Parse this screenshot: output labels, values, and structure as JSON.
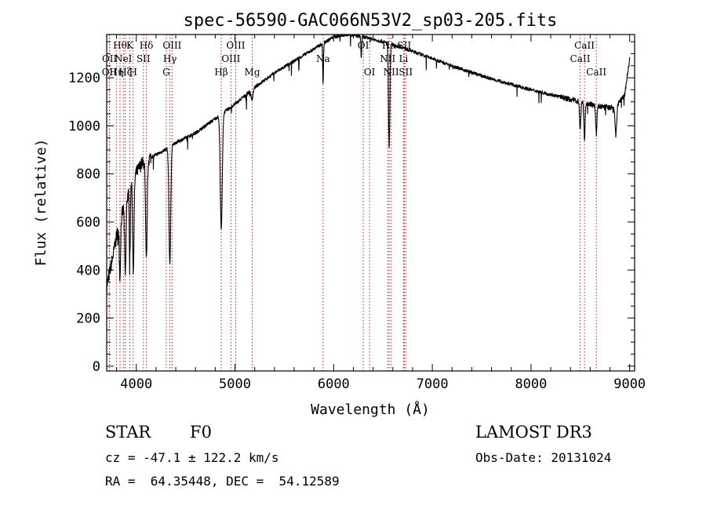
{
  "chart_data": {
    "type": "line",
    "title": "spec-56590-GAC066N53V2_sp03-205.fits",
    "xlabel": "Wavelength (Å)",
    "ylabel": "Flux (relative)",
    "xlim": [
      3700,
      9050
    ],
    "ylim": [
      -20,
      1380
    ],
    "xticks": [
      4000,
      5000,
      6000,
      7000,
      8000,
      9000
    ],
    "yticks": [
      0,
      200,
      400,
      600,
      800,
      1000,
      1200
    ],
    "grid": false,
    "line_color": "#000000",
    "marker_color": "#b22222",
    "continuum": {
      "x": [
        3700,
        3760,
        3800,
        3860,
        3920,
        3980,
        4050,
        4150,
        4250,
        4400,
        4600,
        4800,
        5000,
        5200,
        5400,
        5600,
        5800,
        6000,
        6150,
        6300,
        6500,
        6700,
        7000,
        7300,
        7600,
        8000,
        8300,
        8500,
        8700,
        8850,
        8950,
        9000
      ],
      "y": [
        330,
        450,
        540,
        640,
        720,
        790,
        840,
        870,
        890,
        930,
        970,
        1030,
        1090,
        1160,
        1220,
        1270,
        1320,
        1370,
        1380,
        1370,
        1350,
        1325,
        1280,
        1235,
        1195,
        1150,
        1120,
        1100,
        1080,
        1075,
        1130,
        1280
      ]
    },
    "absorption_lines": [
      {
        "center": 3835,
        "depth": 230,
        "width": 6
      },
      {
        "center": 3889,
        "depth": 300,
        "width": 7
      },
      {
        "center": 3934,
        "depth": 300,
        "width": 5
      },
      {
        "center": 3970,
        "depth": 380,
        "width": 7
      },
      {
        "center": 4102,
        "depth": 420,
        "width": 8
      },
      {
        "center": 4340,
        "depth": 490,
        "width": 9
      },
      {
        "center": 4861,
        "depth": 480,
        "width": 10
      },
      {
        "center": 5173,
        "depth": 40,
        "width": 10
      },
      {
        "center": 5893,
        "depth": 170,
        "width": 4
      },
      {
        "center": 6280,
        "depth": 90,
        "width": 4
      },
      {
        "center": 6563,
        "depth": 430,
        "width": 7
      },
      {
        "center": 8498,
        "depth": 120,
        "width": 6
      },
      {
        "center": 8542,
        "depth": 150,
        "width": 6
      },
      {
        "center": 8662,
        "depth": 120,
        "width": 6
      },
      {
        "center": 8860,
        "depth": 120,
        "width": 8
      }
    ],
    "line_markers": [
      {
        "wavelength": 3727,
        "label": "OII",
        "row": 2
      },
      {
        "wavelength": 3729,
        "label": "OII",
        "row": 1
      },
      {
        "wavelength": 3798,
        "label": "Hη",
        "row": 2
      },
      {
        "wavelength": 3835,
        "label": "Hθ",
        "row": 0
      },
      {
        "wavelength": 3869,
        "label": "NeI",
        "row": 1
      },
      {
        "wavelength": 3889,
        "label": "Hζ",
        "row": 2
      },
      {
        "wavelength": 3934,
        "label": "K",
        "row": 0
      },
      {
        "wavelength": 3968,
        "label": "H",
        "row": 2
      },
      {
        "wavelength": 4072,
        "label": "SII",
        "row": 1
      },
      {
        "wavelength": 4102,
        "label": "Hδ",
        "row": 0
      },
      {
        "wavelength": 4304,
        "label": "G",
        "row": 2
      },
      {
        "wavelength": 4341,
        "label": "Hγ",
        "row": 1
      },
      {
        "wavelength": 4363,
        "label": "OIII",
        "row": 0
      },
      {
        "wavelength": 4861,
        "label": "Hβ",
        "row": 2
      },
      {
        "wavelength": 4959,
        "label": "OIII",
        "row": 1
      },
      {
        "wavelength": 5007,
        "label": "OIII",
        "row": 0
      },
      {
        "wavelength": 5175,
        "label": "Mg",
        "row": 2
      },
      {
        "wavelength": 5893,
        "label": "Na",
        "row": 1
      },
      {
        "wavelength": 6300,
        "label": "OI",
        "row": 0
      },
      {
        "wavelength": 6364,
        "label": "OI",
        "row": 2
      },
      {
        "wavelength": 6548,
        "label": "NII",
        "row": 1
      },
      {
        "wavelength": 6563,
        "label": "Hα",
        "row": 0
      },
      {
        "wavelength": 6583,
        "label": "NII",
        "row": 2
      },
      {
        "wavelength": 6708,
        "label": "Li",
        "row": 1
      },
      {
        "wavelength": 6716,
        "label": "SII",
        "row": 0
      },
      {
        "wavelength": 6731,
        "label": "SII",
        "row": 2
      },
      {
        "wavelength": 8498,
        "label": "CaII",
        "row": 1
      },
      {
        "wavelength": 8542,
        "label": "CaII",
        "row": 0
      },
      {
        "wavelength": 8662,
        "label": "CaII",
        "row": 2
      }
    ]
  },
  "info": {
    "class_label": "STAR",
    "subclass": "F0",
    "survey": "LAMOST DR3",
    "cz": "cz = -47.1 ± 122.2 km/s",
    "obs_date": "Obs-Date: 20131024",
    "coords": "RA =  64.35448, DEC =  54.12589"
  }
}
